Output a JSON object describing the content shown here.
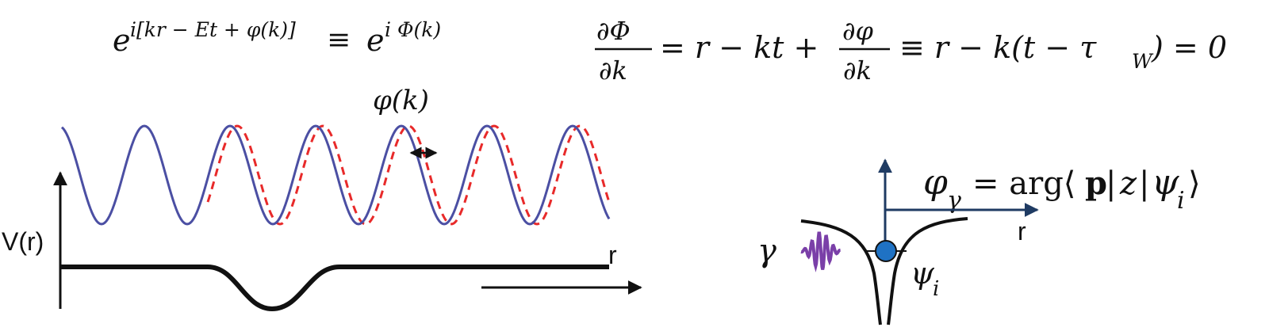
{
  "equations": {
    "phase_left": "e^{i[kr - Et + φ(k)]} ≡ e^{i Φ(k)}",
    "stationary_phase": "∂Φ/∂k = r − kt + ∂φ/∂k ≡ r − k(t − τ_W) = 0",
    "phase_gamma": "φ_γ = arg⟨p|z|ψ_i⟩"
  },
  "labels": {
    "phi_k": "φ(k)",
    "potential_axis": "V(r)",
    "r_axis_left": "r",
    "r_axis_right": "r",
    "gamma": "γ",
    "psi_i": "ψ_i"
  },
  "colors": {
    "wave_blue": "#4b4fa3",
    "wave_red": "#e82a2a",
    "axis_navy": "#1f3b63",
    "photon_purple": "#7a3fa8",
    "electron_blue": "#1f72c4",
    "ink": "#111111"
  }
}
